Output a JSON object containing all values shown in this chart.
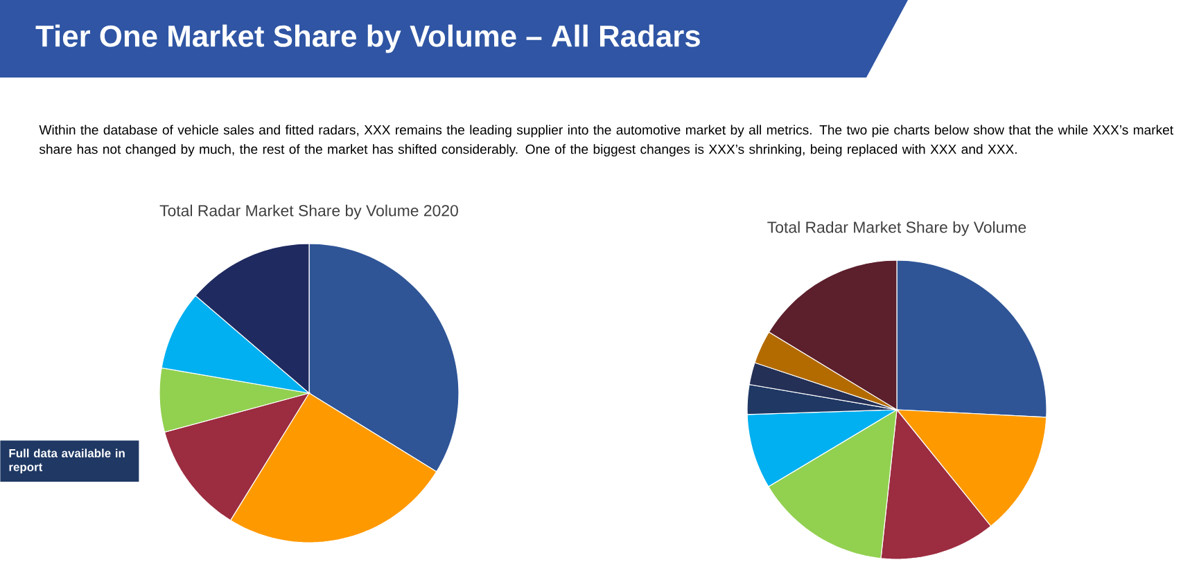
{
  "chart_data": [
    {
      "type": "other",
      "title": "Tier One Market Share by Volume – All Radars",
      "annotations": [
        "Within the database of vehicle sales and fitted radars, XXX remains the leading supplier into the automotive market by all metrics. The two pie charts below show that the while XXX’s market share has not changed by much, the rest of the market has shifted considerably. One of the biggest changes is XXX’s shrinking, being replaced with XXX and XXX.",
        "Full data available in report"
      ]
    },
    {
      "type": "pie",
      "title": "Total Radar Market Share by Volume 2020",
      "categories": [
        null,
        null,
        null,
        null,
        null,
        null
      ],
      "values": [
        33.8,
        25,
        12,
        6.9,
        8.6,
        13.7
      ],
      "colors": [
        "#2f5597",
        "#ff9900",
        "#9c2c40",
        "#92d050",
        "#00b0f0",
        "#1f2a60"
      ]
    },
    {
      "type": "pie",
      "title": "Total Radar Market Share by Volume",
      "categories": [
        null,
        null,
        null,
        null,
        null,
        null,
        null,
        null,
        null
      ],
      "values": [
        25.8,
        13.4,
        12.5,
        14.7,
        8.1,
        3.2,
        2.4,
        3.6,
        16.3
      ],
      "colors": [
        "#2f5597",
        "#ff9900",
        "#9c2c40",
        "#92d050",
        "#00b0f0",
        "#1f3864",
        "#243056",
        "#b36b00",
        "#5c1f2c"
      ]
    }
  ]
}
